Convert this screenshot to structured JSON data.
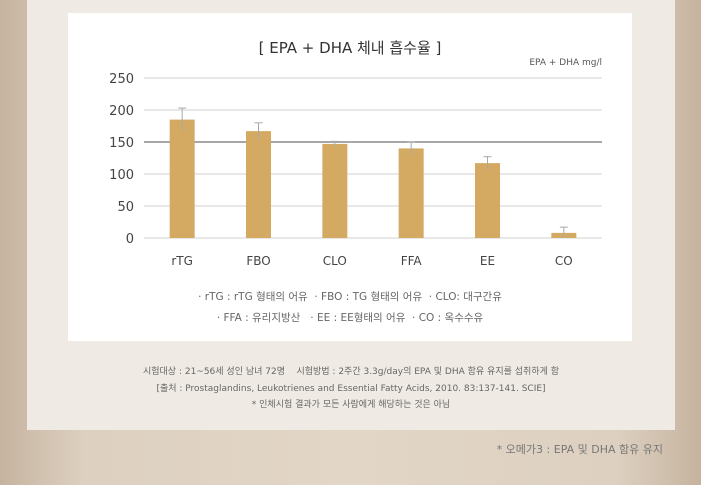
{
  "chart_data": {
    "type": "bar",
    "title": "[ EPA + DHA 체내 흡수율 ]",
    "unit_label": "EPA + DHA mg/l",
    "categories": [
      "rTG",
      "FBO",
      "CLO",
      "FFA",
      "EE",
      "CO"
    ],
    "values": [
      185,
      167,
      147,
      140,
      117,
      8
    ],
    "error": [
      18,
      13,
      4,
      10,
      10,
      9
    ],
    "ylim": [
      0,
      250
    ],
    "yticks": [
      "250",
      "200",
      "150",
      "100",
      "50",
      "0"
    ],
    "ytick_values": [
      250,
      200,
      150,
      100,
      50,
      0
    ],
    "reference_line": 150,
    "grid": true,
    "bar_color": "#d4aa63"
  },
  "legend": {
    "line1": "· rTG : rTG 형태의 어유  · FBO : TG 형태의 어유  · CLO: 대구간유",
    "line2": "· FFA : 유리지방산   · EE : EE형태의 어유  · CO : 옥수수유"
  },
  "notes": {
    "line1": "시험대상 : 21~56세 성인 남녀 72명    시험방법 : 2주간 3.3g/day의 EPA 및 DHA 함유 유지를 섭취하게 함",
    "line2": "[출처 : Prostaglandins, Leukotrienes and Essential Fatty Acids, 2010. 83:137-141. SCIE]",
    "line3": "* 인체시험 결과가 모든 사람에게 해당하는 것은 아님"
  },
  "footnote": "* 오메가3 : EPA 및 DHA 함유 유지"
}
